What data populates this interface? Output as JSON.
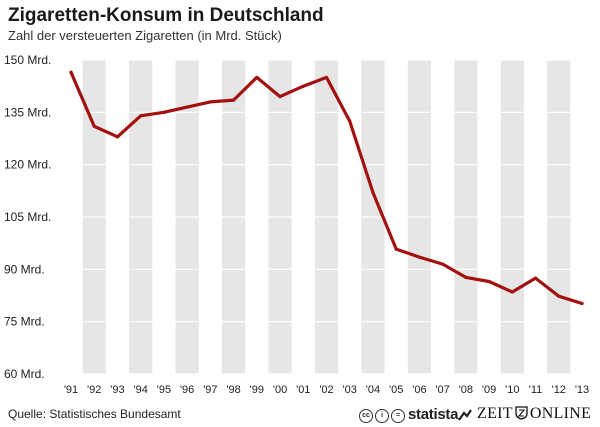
{
  "header": {
    "title": "Zigaretten-Konsum in Deutschland",
    "subtitle": "Zahl der versteuerten Zigaretten (in Mrd. Stück)"
  },
  "footer": {
    "source": "Quelle: Statistisches Bundesamt",
    "brand_statista": "statista",
    "brand_zeit_left": "ZEIT",
    "brand_zeit_right": "ONLINE",
    "license_icons": [
      "cc-icon",
      "by-icon",
      "nd-icon"
    ]
  },
  "colors": {
    "line": "#a3100f",
    "band": "#e6e6e6",
    "grid": "#ffffff",
    "text": "#222222"
  },
  "chart_data": {
    "type": "line",
    "title": "Zigaretten-Konsum in Deutschland",
    "subtitle": "Zahl der versteuerten Zigaretten (in Mrd. Stück)",
    "xlabel": "",
    "ylabel": "",
    "categories": [
      "'91",
      "'92",
      "'93",
      "'94",
      "'95",
      "'96",
      "'97",
      "'98",
      "'99",
      "'00",
      "'01",
      "'02",
      "'03",
      "'04",
      "'05",
      "'06",
      "'07",
      "'08",
      "'09",
      "'10",
      "'11",
      "'12",
      "'13"
    ],
    "values": [
      146.5,
      131,
      128,
      134,
      135,
      136.5,
      138,
      138.5,
      145,
      139.5,
      142.5,
      145,
      132.5,
      112,
      95.8,
      93.5,
      91.5,
      87.7,
      86.5,
      83.5,
      87.5,
      82.3,
      80.2
    ],
    "ylim": [
      60,
      150
    ],
    "yticks": [
      60,
      75,
      90,
      105,
      120,
      135,
      150
    ],
    "ytick_labels": [
      "60 Mrd.",
      "75 Mrd.",
      "90 Mrd.",
      "105 Mrd.",
      "120 Mrd.",
      "135 Mrd.",
      "150 Mrd."
    ],
    "grid": true,
    "legend": "none"
  }
}
